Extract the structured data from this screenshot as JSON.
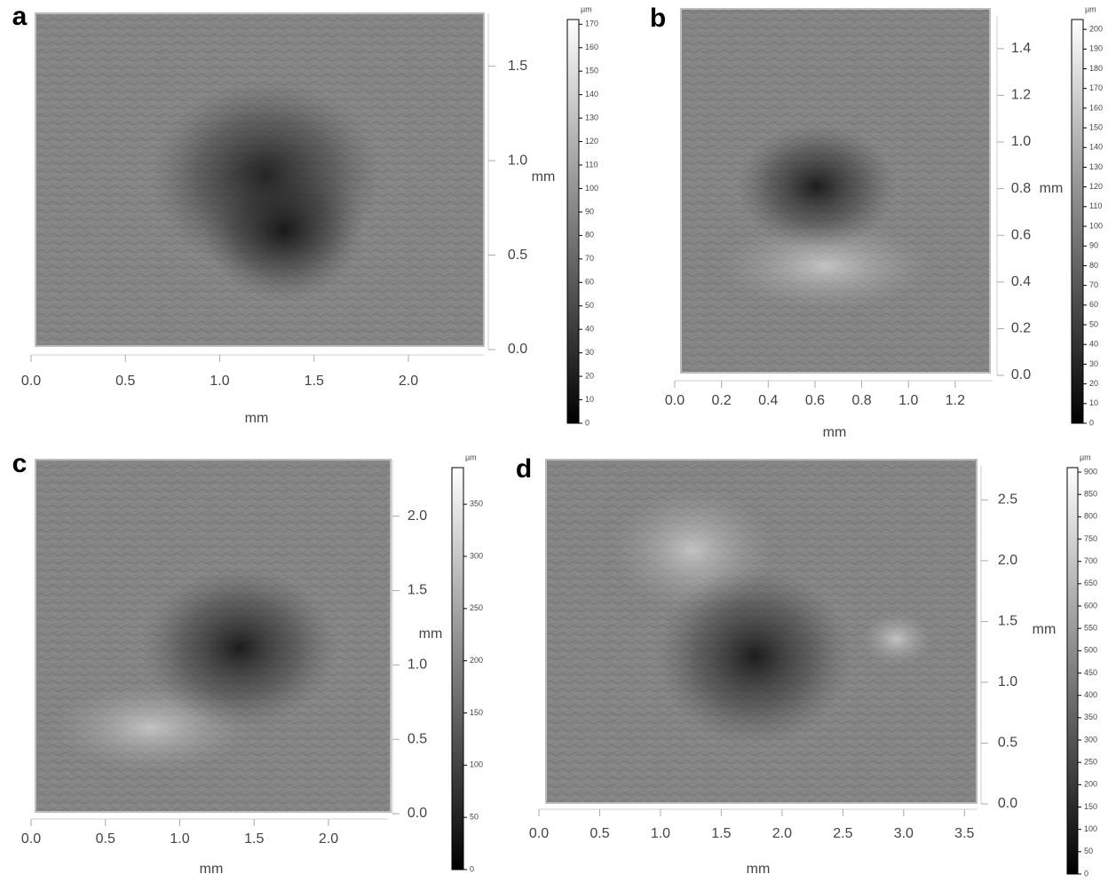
{
  "chart_data": [
    {
      "type": "surface",
      "panel": "a",
      "xlabel": "mm",
      "ylabel": "mm",
      "xlim": [
        0,
        2.4
      ],
      "xticks": [
        {
          "value": 0,
          "label": "0.0"
        },
        0.5,
        {
          "value": 1,
          "label": "1.0"
        },
        1.5,
        {
          "value": 2,
          "label": "2.0"
        }
      ],
      "ylim": [
        0,
        1.78
      ],
      "yticks": [
        {
          "value": 0,
          "label": "0.0"
        },
        0.5,
        {
          "value": 1,
          "label": "1.0"
        },
        1.5
      ],
      "colorbar": {
        "label": "µm",
        "lim": [
          0,
          172
        ],
        "ticks": [
          0,
          10,
          20,
          30,
          40,
          50,
          60,
          70,
          80,
          90,
          100,
          110,
          120,
          130,
          140,
          150,
          160,
          170
        ]
      }
    },
    {
      "type": "surface",
      "panel": "b",
      "xlabel": "mm",
      "ylabel": "mm",
      "xlim": [
        0,
        1.36
      ],
      "xticks": [
        {
          "value": 0,
          "label": "0.0"
        },
        0.2,
        0.4,
        0.6,
        0.8,
        {
          "value": 1,
          "label": "1.0"
        },
        1.2
      ],
      "ylim": [
        0,
        1.54
      ],
      "yticks": [
        {
          "value": 0,
          "label": "0.0"
        },
        0.2,
        0.4,
        0.6,
        0.8,
        {
          "value": 1,
          "label": "1.0"
        },
        1.2,
        1.4
      ],
      "colorbar": {
        "label": "µm",
        "lim": [
          0,
          205
        ],
        "ticks": [
          0,
          10,
          20,
          30,
          40,
          50,
          60,
          70,
          80,
          90,
          100,
          110,
          120,
          130,
          140,
          150,
          160,
          170,
          180,
          190,
          200
        ]
      }
    },
    {
      "type": "surface",
      "panel": "c",
      "xlabel": "mm",
      "ylabel": "mm",
      "xlim": [
        0,
        2.4
      ],
      "xticks": [
        {
          "value": 0,
          "label": "0.0"
        },
        0.5,
        {
          "value": 1,
          "label": "1.0"
        },
        1.5,
        {
          "value": 2,
          "label": "2.0"
        }
      ],
      "ylim": [
        0,
        2.38
      ],
      "yticks": [
        {
          "value": 0,
          "label": "0.0"
        },
        0.5,
        {
          "value": 1,
          "label": "1.0"
        },
        1.5,
        {
          "value": 2,
          "label": "2.0"
        }
      ],
      "colorbar": {
        "label": "µm",
        "lim": [
          0,
          385
        ],
        "ticks": [
          0,
          50,
          100,
          150,
          200,
          250,
          300,
          350
        ]
      }
    },
    {
      "type": "surface",
      "panel": "d",
      "xlabel": "mm",
      "ylabel": "mm",
      "xlim": [
        0,
        3.6
      ],
      "xticks": [
        {
          "value": 0,
          "label": "0.0"
        },
        0.5,
        {
          "value": 1,
          "label": "1.0"
        },
        1.5,
        {
          "value": 2,
          "label": "2.0"
        },
        2.5,
        {
          "value": 3,
          "label": "3.0"
        },
        3.5
      ],
      "ylim": [
        0,
        2.78
      ],
      "yticks": [
        {
          "value": 0,
          "label": "0.0"
        },
        0.5,
        {
          "value": 1,
          "label": "1.0"
        },
        1.5,
        {
          "value": 2,
          "label": "2.0"
        },
        2.5
      ],
      "colorbar": {
        "label": "µm",
        "lim": [
          0,
          910
        ],
        "ticks": [
          0,
          50,
          100,
          150,
          200,
          250,
          300,
          350,
          400,
          450,
          500,
          550,
          600,
          650,
          700,
          750,
          800,
          850,
          900
        ]
      }
    }
  ]
}
